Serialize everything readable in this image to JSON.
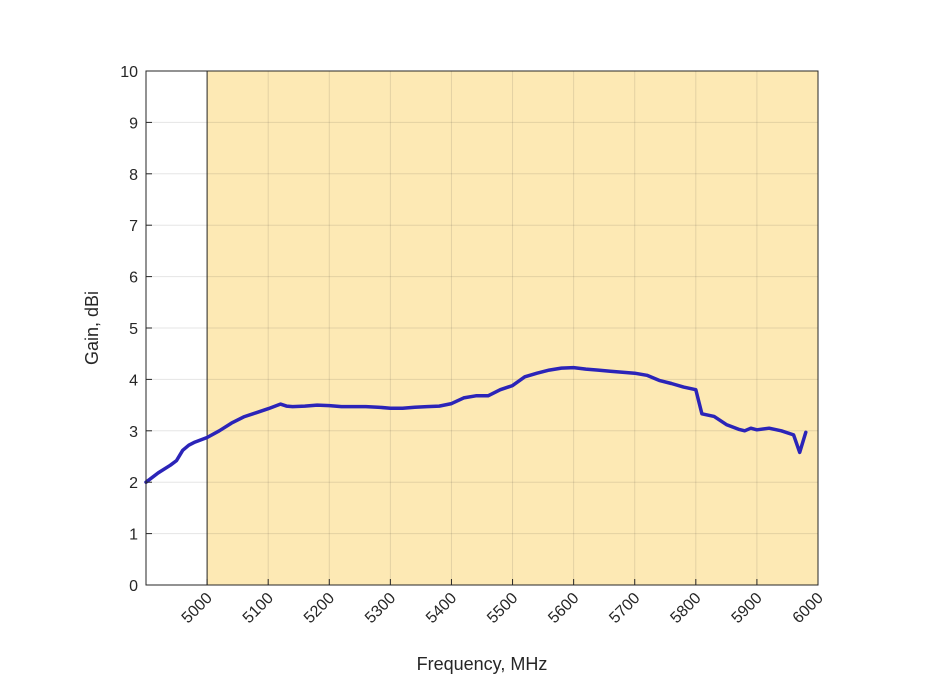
{
  "chart_data": {
    "type": "line",
    "xlabel": "Frequency, MHz",
    "ylabel": "Gain, dBi",
    "xlim": [
      4900,
      6000
    ],
    "ylim": [
      0,
      10
    ],
    "x_ticks": [
      5000,
      5100,
      5200,
      5300,
      5400,
      5500,
      5600,
      5700,
      5800,
      5900,
      6000
    ],
    "y_ticks": [
      0,
      1,
      2,
      3,
      4,
      5,
      6,
      7,
      8,
      9,
      10
    ],
    "grid": true,
    "shaded_band": {
      "x_start": 5000,
      "x_end": 6000,
      "color": "#fde9b4"
    },
    "series": [
      {
        "color": "#2b24b8",
        "x": [
          4900,
          4920,
          4940,
          4950,
          4960,
          4970,
          4980,
          5000,
          5020,
          5040,
          5060,
          5080,
          5100,
          5120,
          5130,
          5140,
          5160,
          5180,
          5200,
          5220,
          5240,
          5260,
          5280,
          5300,
          5320,
          5340,
          5360,
          5380,
          5400,
          5420,
          5440,
          5460,
          5480,
          5500,
          5520,
          5540,
          5560,
          5580,
          5600,
          5620,
          5640,
          5660,
          5680,
          5700,
          5720,
          5740,
          5760,
          5780,
          5800,
          5810,
          5830,
          5850,
          5870,
          5880,
          5890,
          5900,
          5920,
          5940,
          5960,
          5970,
          5980
        ],
        "y": [
          2.0,
          2.18,
          2.33,
          2.42,
          2.62,
          2.72,
          2.78,
          2.87,
          3.0,
          3.15,
          3.27,
          3.35,
          3.43,
          3.52,
          3.48,
          3.47,
          3.48,
          3.5,
          3.49,
          3.47,
          3.47,
          3.47,
          3.46,
          3.44,
          3.44,
          3.46,
          3.47,
          3.48,
          3.53,
          3.64,
          3.68,
          3.68,
          3.8,
          3.88,
          4.05,
          4.12,
          4.18,
          4.22,
          4.23,
          4.2,
          4.18,
          4.16,
          4.14,
          4.12,
          4.08,
          3.98,
          3.92,
          3.85,
          3.8,
          3.33,
          3.28,
          3.12,
          3.03,
          3.0,
          3.05,
          3.02,
          3.05,
          3.0,
          2.92,
          2.58,
          2.97
        ]
      }
    ]
  }
}
